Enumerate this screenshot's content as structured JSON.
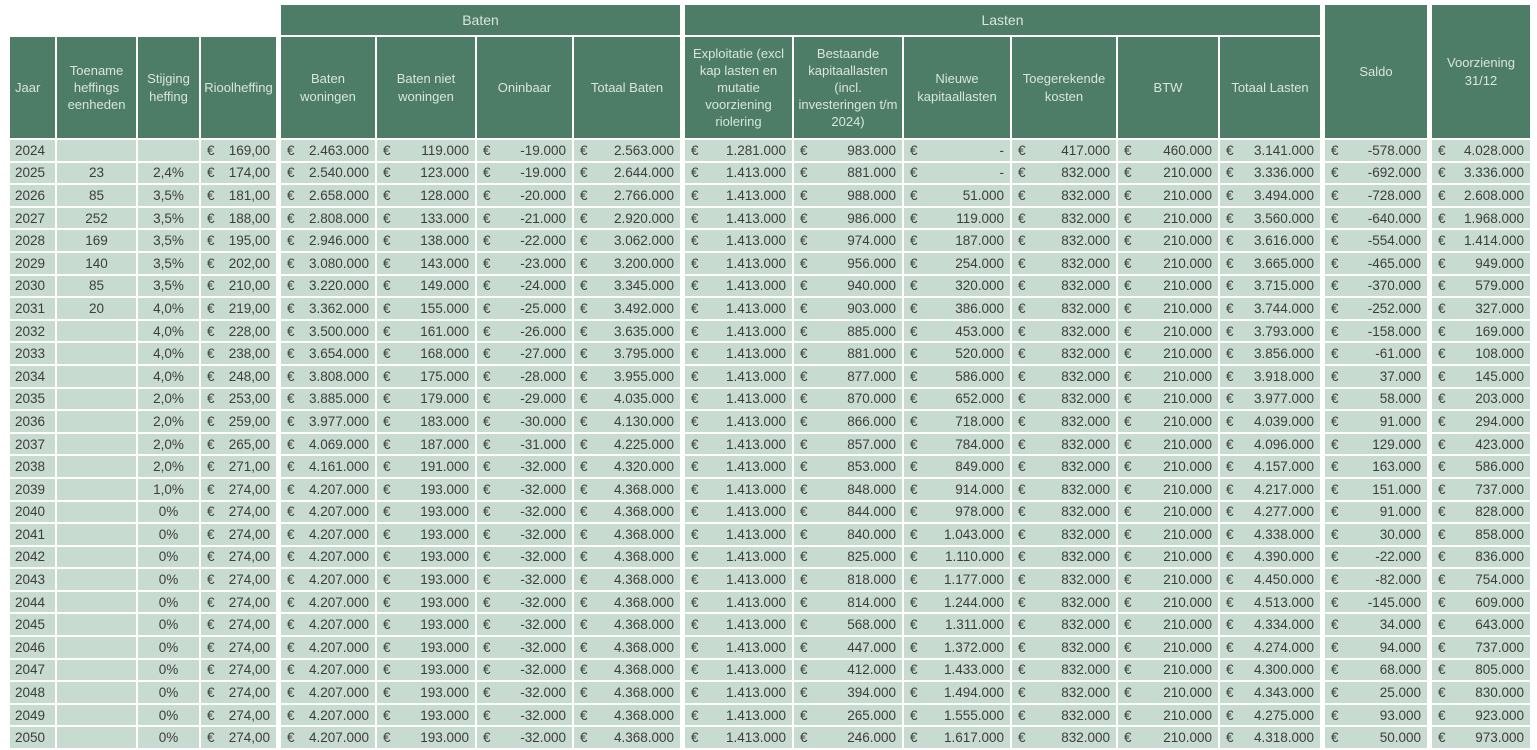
{
  "table": {
    "euro_sign": "€",
    "groups": {
      "baten": "Baten",
      "lasten": "Lasten"
    },
    "columns": [
      {
        "key": "jaar",
        "label": "Jaar",
        "type": "text"
      },
      {
        "key": "toename-heffingseenheden",
        "label": "Toename heffings eenheden",
        "type": "center"
      },
      {
        "key": "stijging-heffing",
        "label": "Stijging heffing",
        "type": "center"
      },
      {
        "key": "rioolheffing",
        "label": "Rioolheffing",
        "type": "euro"
      },
      {
        "key": "baten-woningen",
        "label": "Baten woningen",
        "type": "euro",
        "group": "Baten"
      },
      {
        "key": "baten-niet-woningen",
        "label": "Baten niet woningen",
        "type": "euro",
        "group": "Baten"
      },
      {
        "key": "oninbaar",
        "label": "Oninbaar",
        "type": "euro",
        "group": "Baten"
      },
      {
        "key": "totaal-baten",
        "label": "Totaal Baten",
        "type": "euro",
        "group": "Baten"
      },
      {
        "key": "exploitatie",
        "label": "Exploitatie (excl kap lasten en mutatie voorziening riolering",
        "type": "euro",
        "group": "Lasten"
      },
      {
        "key": "bestaande-kapitaallasten",
        "label": "Bestaande kapitaallasten (incl. investeringen t/m 2024)",
        "type": "euro",
        "group": "Lasten"
      },
      {
        "key": "nieuwe-kapitaallasten",
        "label": "Nieuwe kapitaallasten",
        "type": "euro",
        "group": "Lasten"
      },
      {
        "key": "toegerekende-kosten",
        "label": "Toegerekende kosten",
        "type": "euro",
        "group": "Lasten"
      },
      {
        "key": "btw",
        "label": "BTW",
        "type": "euro",
        "group": "Lasten"
      },
      {
        "key": "totaal-lasten",
        "label": "Totaal Lasten",
        "type": "euro",
        "group": "Lasten"
      },
      {
        "key": "saldo",
        "label": "Saldo",
        "type": "euro"
      },
      {
        "key": "voorziening-3112",
        "label": "Voorziening 31/12",
        "type": "euro"
      }
    ],
    "rows": [
      [
        "2024",
        "",
        "",
        "169,00",
        "2.463.000",
        "119.000",
        "-19.000",
        "2.563.000",
        "1.281.000",
        "983.000",
        "-",
        "417.000",
        "460.000",
        "3.141.000",
        "-578.000",
        "4.028.000"
      ],
      [
        "2025",
        "23",
        "2,4%",
        "174,00",
        "2.540.000",
        "123.000",
        "-19.000",
        "2.644.000",
        "1.413.000",
        "881.000",
        "-",
        "832.000",
        "210.000",
        "3.336.000",
        "-692.000",
        "3.336.000"
      ],
      [
        "2026",
        "85",
        "3,5%",
        "181,00",
        "2.658.000",
        "128.000",
        "-20.000",
        "2.766.000",
        "1.413.000",
        "988.000",
        "51.000",
        "832.000",
        "210.000",
        "3.494.000",
        "-728.000",
        "2.608.000"
      ],
      [
        "2027",
        "252",
        "3,5%",
        "188,00",
        "2.808.000",
        "133.000",
        "-21.000",
        "2.920.000",
        "1.413.000",
        "986.000",
        "119.000",
        "832.000",
        "210.000",
        "3.560.000",
        "-640.000",
        "1.968.000"
      ],
      [
        "2028",
        "169",
        "3,5%",
        "195,00",
        "2.946.000",
        "138.000",
        "-22.000",
        "3.062.000",
        "1.413.000",
        "974.000",
        "187.000",
        "832.000",
        "210.000",
        "3.616.000",
        "-554.000",
        "1.414.000"
      ],
      [
        "2029",
        "140",
        "3,5%",
        "202,00",
        "3.080.000",
        "143.000",
        "-23.000",
        "3.200.000",
        "1.413.000",
        "956.000",
        "254.000",
        "832.000",
        "210.000",
        "3.665.000",
        "-465.000",
        "949.000"
      ],
      [
        "2030",
        "85",
        "3,5%",
        "210,00",
        "3.220.000",
        "149.000",
        "-24.000",
        "3.345.000",
        "1.413.000",
        "940.000",
        "320.000",
        "832.000",
        "210.000",
        "3.715.000",
        "-370.000",
        "579.000"
      ],
      [
        "2031",
        "20",
        "4,0%",
        "219,00",
        "3.362.000",
        "155.000",
        "-25.000",
        "3.492.000",
        "1.413.000",
        "903.000",
        "386.000",
        "832.000",
        "210.000",
        "3.744.000",
        "-252.000",
        "327.000"
      ],
      [
        "2032",
        "",
        "4,0%",
        "228,00",
        "3.500.000",
        "161.000",
        "-26.000",
        "3.635.000",
        "1.413.000",
        "885.000",
        "453.000",
        "832.000",
        "210.000",
        "3.793.000",
        "-158.000",
        "169.000"
      ],
      [
        "2033",
        "",
        "4,0%",
        "238,00",
        "3.654.000",
        "168.000",
        "-27.000",
        "3.795.000",
        "1.413.000",
        "881.000",
        "520.000",
        "832.000",
        "210.000",
        "3.856.000",
        "-61.000",
        "108.000"
      ],
      [
        "2034",
        "",
        "4,0%",
        "248,00",
        "3.808.000",
        "175.000",
        "-28.000",
        "3.955.000",
        "1.413.000",
        "877.000",
        "586.000",
        "832.000",
        "210.000",
        "3.918.000",
        "37.000",
        "145.000"
      ],
      [
        "2035",
        "",
        "2,0%",
        "253,00",
        "3.885.000",
        "179.000",
        "-29.000",
        "4.035.000",
        "1.413.000",
        "870.000",
        "652.000",
        "832.000",
        "210.000",
        "3.977.000",
        "58.000",
        "203.000"
      ],
      [
        "2036",
        "",
        "2,0%",
        "259,00",
        "3.977.000",
        "183.000",
        "-30.000",
        "4.130.000",
        "1.413.000",
        "866.000",
        "718.000",
        "832.000",
        "210.000",
        "4.039.000",
        "91.000",
        "294.000"
      ],
      [
        "2037",
        "",
        "2,0%",
        "265,00",
        "4.069.000",
        "187.000",
        "-31.000",
        "4.225.000",
        "1.413.000",
        "857.000",
        "784.000",
        "832.000",
        "210.000",
        "4.096.000",
        "129.000",
        "423.000"
      ],
      [
        "2038",
        "",
        "2,0%",
        "271,00",
        "4.161.000",
        "191.000",
        "-32.000",
        "4.320.000",
        "1.413.000",
        "853.000",
        "849.000",
        "832.000",
        "210.000",
        "4.157.000",
        "163.000",
        "586.000"
      ],
      [
        "2039",
        "",
        "1,0%",
        "274,00",
        "4.207.000",
        "193.000",
        "-32.000",
        "4.368.000",
        "1.413.000",
        "848.000",
        "914.000",
        "832.000",
        "210.000",
        "4.217.000",
        "151.000",
        "737.000"
      ],
      [
        "2040",
        "",
        "0%",
        "274,00",
        "4.207.000",
        "193.000",
        "-32.000",
        "4.368.000",
        "1.413.000",
        "844.000",
        "978.000",
        "832.000",
        "210.000",
        "4.277.000",
        "91.000",
        "828.000"
      ],
      [
        "2041",
        "",
        "0%",
        "274,00",
        "4.207.000",
        "193.000",
        "-32.000",
        "4.368.000",
        "1.413.000",
        "840.000",
        "1.043.000",
        "832.000",
        "210.000",
        "4.338.000",
        "30.000",
        "858.000"
      ],
      [
        "2042",
        "",
        "0%",
        "274,00",
        "4.207.000",
        "193.000",
        "-32.000",
        "4.368.000",
        "1.413.000",
        "825.000",
        "1.110.000",
        "832.000",
        "210.000",
        "4.390.000",
        "-22.000",
        "836.000"
      ],
      [
        "2043",
        "",
        "0%",
        "274,00",
        "4.207.000",
        "193.000",
        "-32.000",
        "4.368.000",
        "1.413.000",
        "818.000",
        "1.177.000",
        "832.000",
        "210.000",
        "4.450.000",
        "-82.000",
        "754.000"
      ],
      [
        "2044",
        "",
        "0%",
        "274,00",
        "4.207.000",
        "193.000",
        "-32.000",
        "4.368.000",
        "1.413.000",
        "814.000",
        "1.244.000",
        "832.000",
        "210.000",
        "4.513.000",
        "-145.000",
        "609.000"
      ],
      [
        "2045",
        "",
        "0%",
        "274,00",
        "4.207.000",
        "193.000",
        "-32.000",
        "4.368.000",
        "1.413.000",
        "568.000",
        "1.311.000",
        "832.000",
        "210.000",
        "4.334.000",
        "34.000",
        "643.000"
      ],
      [
        "2046",
        "",
        "0%",
        "274,00",
        "4.207.000",
        "193.000",
        "-32.000",
        "4.368.000",
        "1.413.000",
        "447.000",
        "1.372.000",
        "832.000",
        "210.000",
        "4.274.000",
        "94.000",
        "737.000"
      ],
      [
        "2047",
        "",
        "0%",
        "274,00",
        "4.207.000",
        "193.000",
        "-32.000",
        "4.368.000",
        "1.413.000",
        "412.000",
        "1.433.000",
        "832.000",
        "210.000",
        "4.300.000",
        "68.000",
        "805.000"
      ],
      [
        "2048",
        "",
        "0%",
        "274,00",
        "4.207.000",
        "193.000",
        "-32.000",
        "4.368.000",
        "1.413.000",
        "394.000",
        "1.494.000",
        "832.000",
        "210.000",
        "4.343.000",
        "25.000",
        "830.000"
      ],
      [
        "2049",
        "",
        "0%",
        "274,00",
        "4.207.000",
        "193.000",
        "-32.000",
        "4.368.000",
        "1.413.000",
        "265.000",
        "1.555.000",
        "832.000",
        "210.000",
        "4.275.000",
        "93.000",
        "923.000"
      ],
      [
        "2050",
        "",
        "0%",
        "274,00",
        "4.207.000",
        "193.000",
        "-32.000",
        "4.368.000",
        "1.413.000",
        "246.000",
        "1.617.000",
        "832.000",
        "210.000",
        "4.318.000",
        "50.000",
        "973.000"
      ]
    ]
  },
  "colors": {
    "header_green": "#4e7d67",
    "cell_green": "#c8dbd0",
    "header_text": "#d9e5dd",
    "body_text": "#3d3d3d",
    "grid_white": "#ffffff"
  }
}
